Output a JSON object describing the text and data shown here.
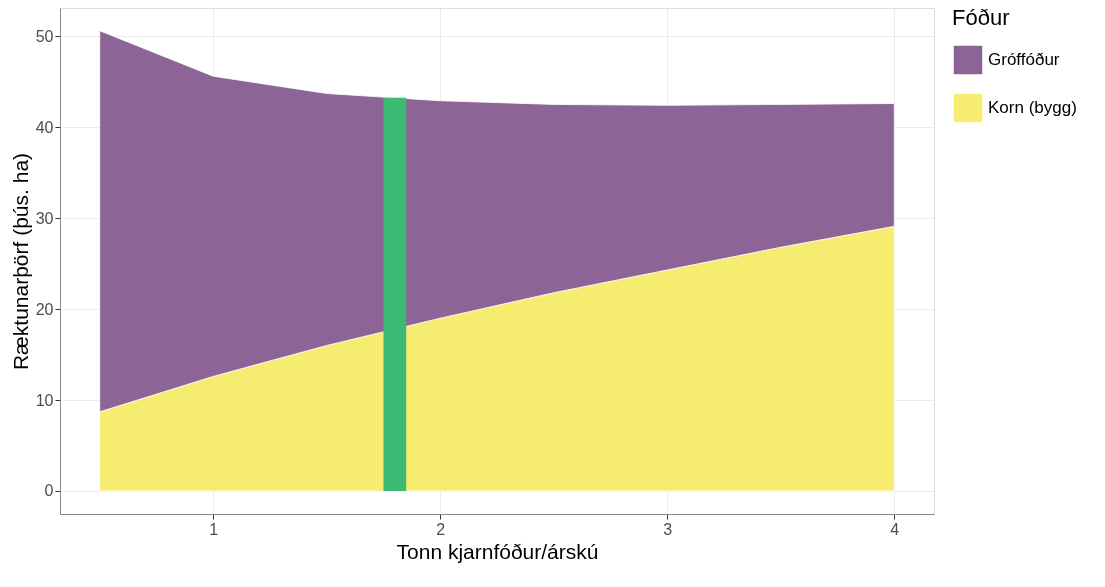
{
  "chart_data": {
    "type": "area",
    "stacked": true,
    "xlabel": "Tonn kjarnfóður/árskú",
    "ylabel": "Ræktunarþörf (þús. ha)",
    "legend_title": "Fóður",
    "legend": "right",
    "grid": true,
    "x": [
      0.5,
      1,
      1.5,
      2,
      2.5,
      3,
      3.5,
      4
    ],
    "series": [
      {
        "name": "Korn (bygg)",
        "color": "#f6ec6f",
        "values": [
          8.7,
          12.6,
          16.0,
          19.0,
          21.8,
          24.3,
          26.8,
          29.1
        ]
      },
      {
        "name": "Gróffóður",
        "color": "#8c6496",
        "values": [
          41.9,
          33.0,
          27.7,
          23.9,
          20.7,
          18.1,
          15.7,
          13.5
        ]
      }
    ],
    "bands": [
      {
        "axis": "x",
        "from": 1.75,
        "to": 1.85,
        "color": "#3dbb74"
      }
    ],
    "xlim": [
      0.325,
      4.175
    ],
    "xticks": [
      1,
      2,
      3,
      4
    ],
    "ylim": [
      -2.53,
      53.1
    ],
    "yticks": [
      0,
      10,
      20,
      30,
      40,
      50
    ]
  }
}
